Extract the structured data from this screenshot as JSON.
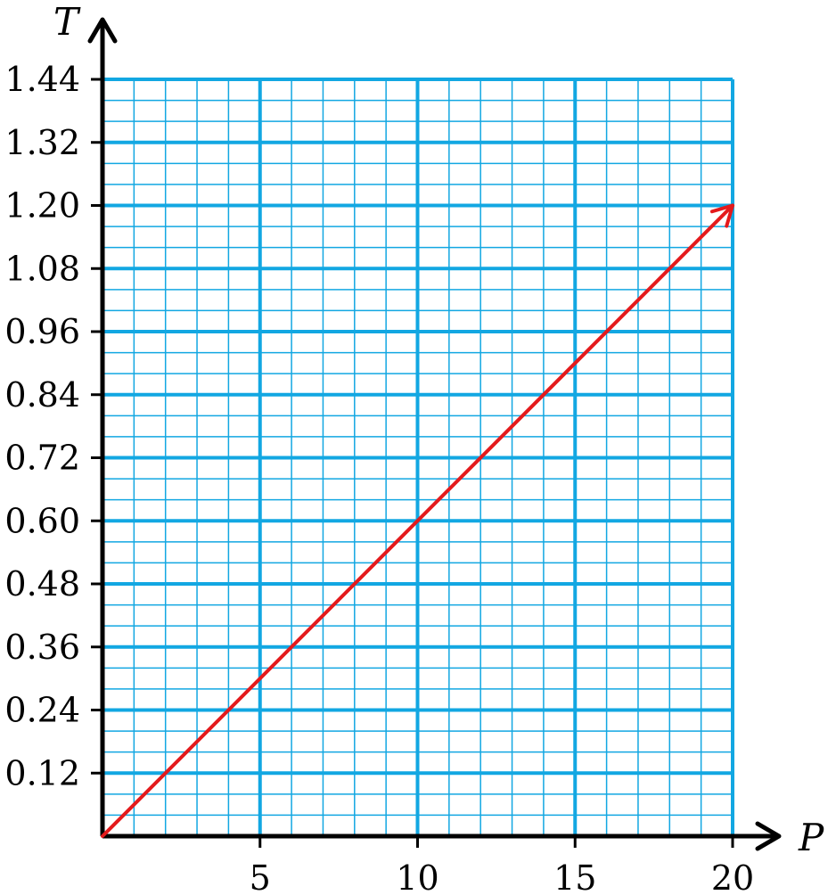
{
  "chart_data": {
    "type": "line",
    "xlabel": "P",
    "ylabel": "T",
    "xlim": [
      0,
      20
    ],
    "ylim": [
      0,
      1.44
    ],
    "x_ticks": [
      5,
      10,
      15,
      20
    ],
    "x_tick_labels": [
      "5",
      "10",
      "15",
      "20"
    ],
    "y_ticks": [
      0.12,
      0.24,
      0.36,
      0.48,
      0.6,
      0.72,
      0.84,
      0.96,
      1.08,
      1.2,
      1.32,
      1.44
    ],
    "y_tick_labels": [
      "0.12",
      "0.24",
      "0.36",
      "0.48",
      "0.60",
      "0.72",
      "0.84",
      "0.96",
      "1.08",
      "1.20",
      "1.32",
      "1.44"
    ],
    "grid": true,
    "minor_grid": {
      "x_step": 1,
      "y_step": 0.04
    },
    "series": [
      {
        "x": [
          0,
          20
        ],
        "y": [
          0,
          1.2
        ],
        "color": "#e41a1c",
        "arrow_end": true
      }
    ],
    "colors": {
      "grid": "#12a7e2",
      "line": "#e41a1c",
      "axis": "#000000"
    }
  }
}
